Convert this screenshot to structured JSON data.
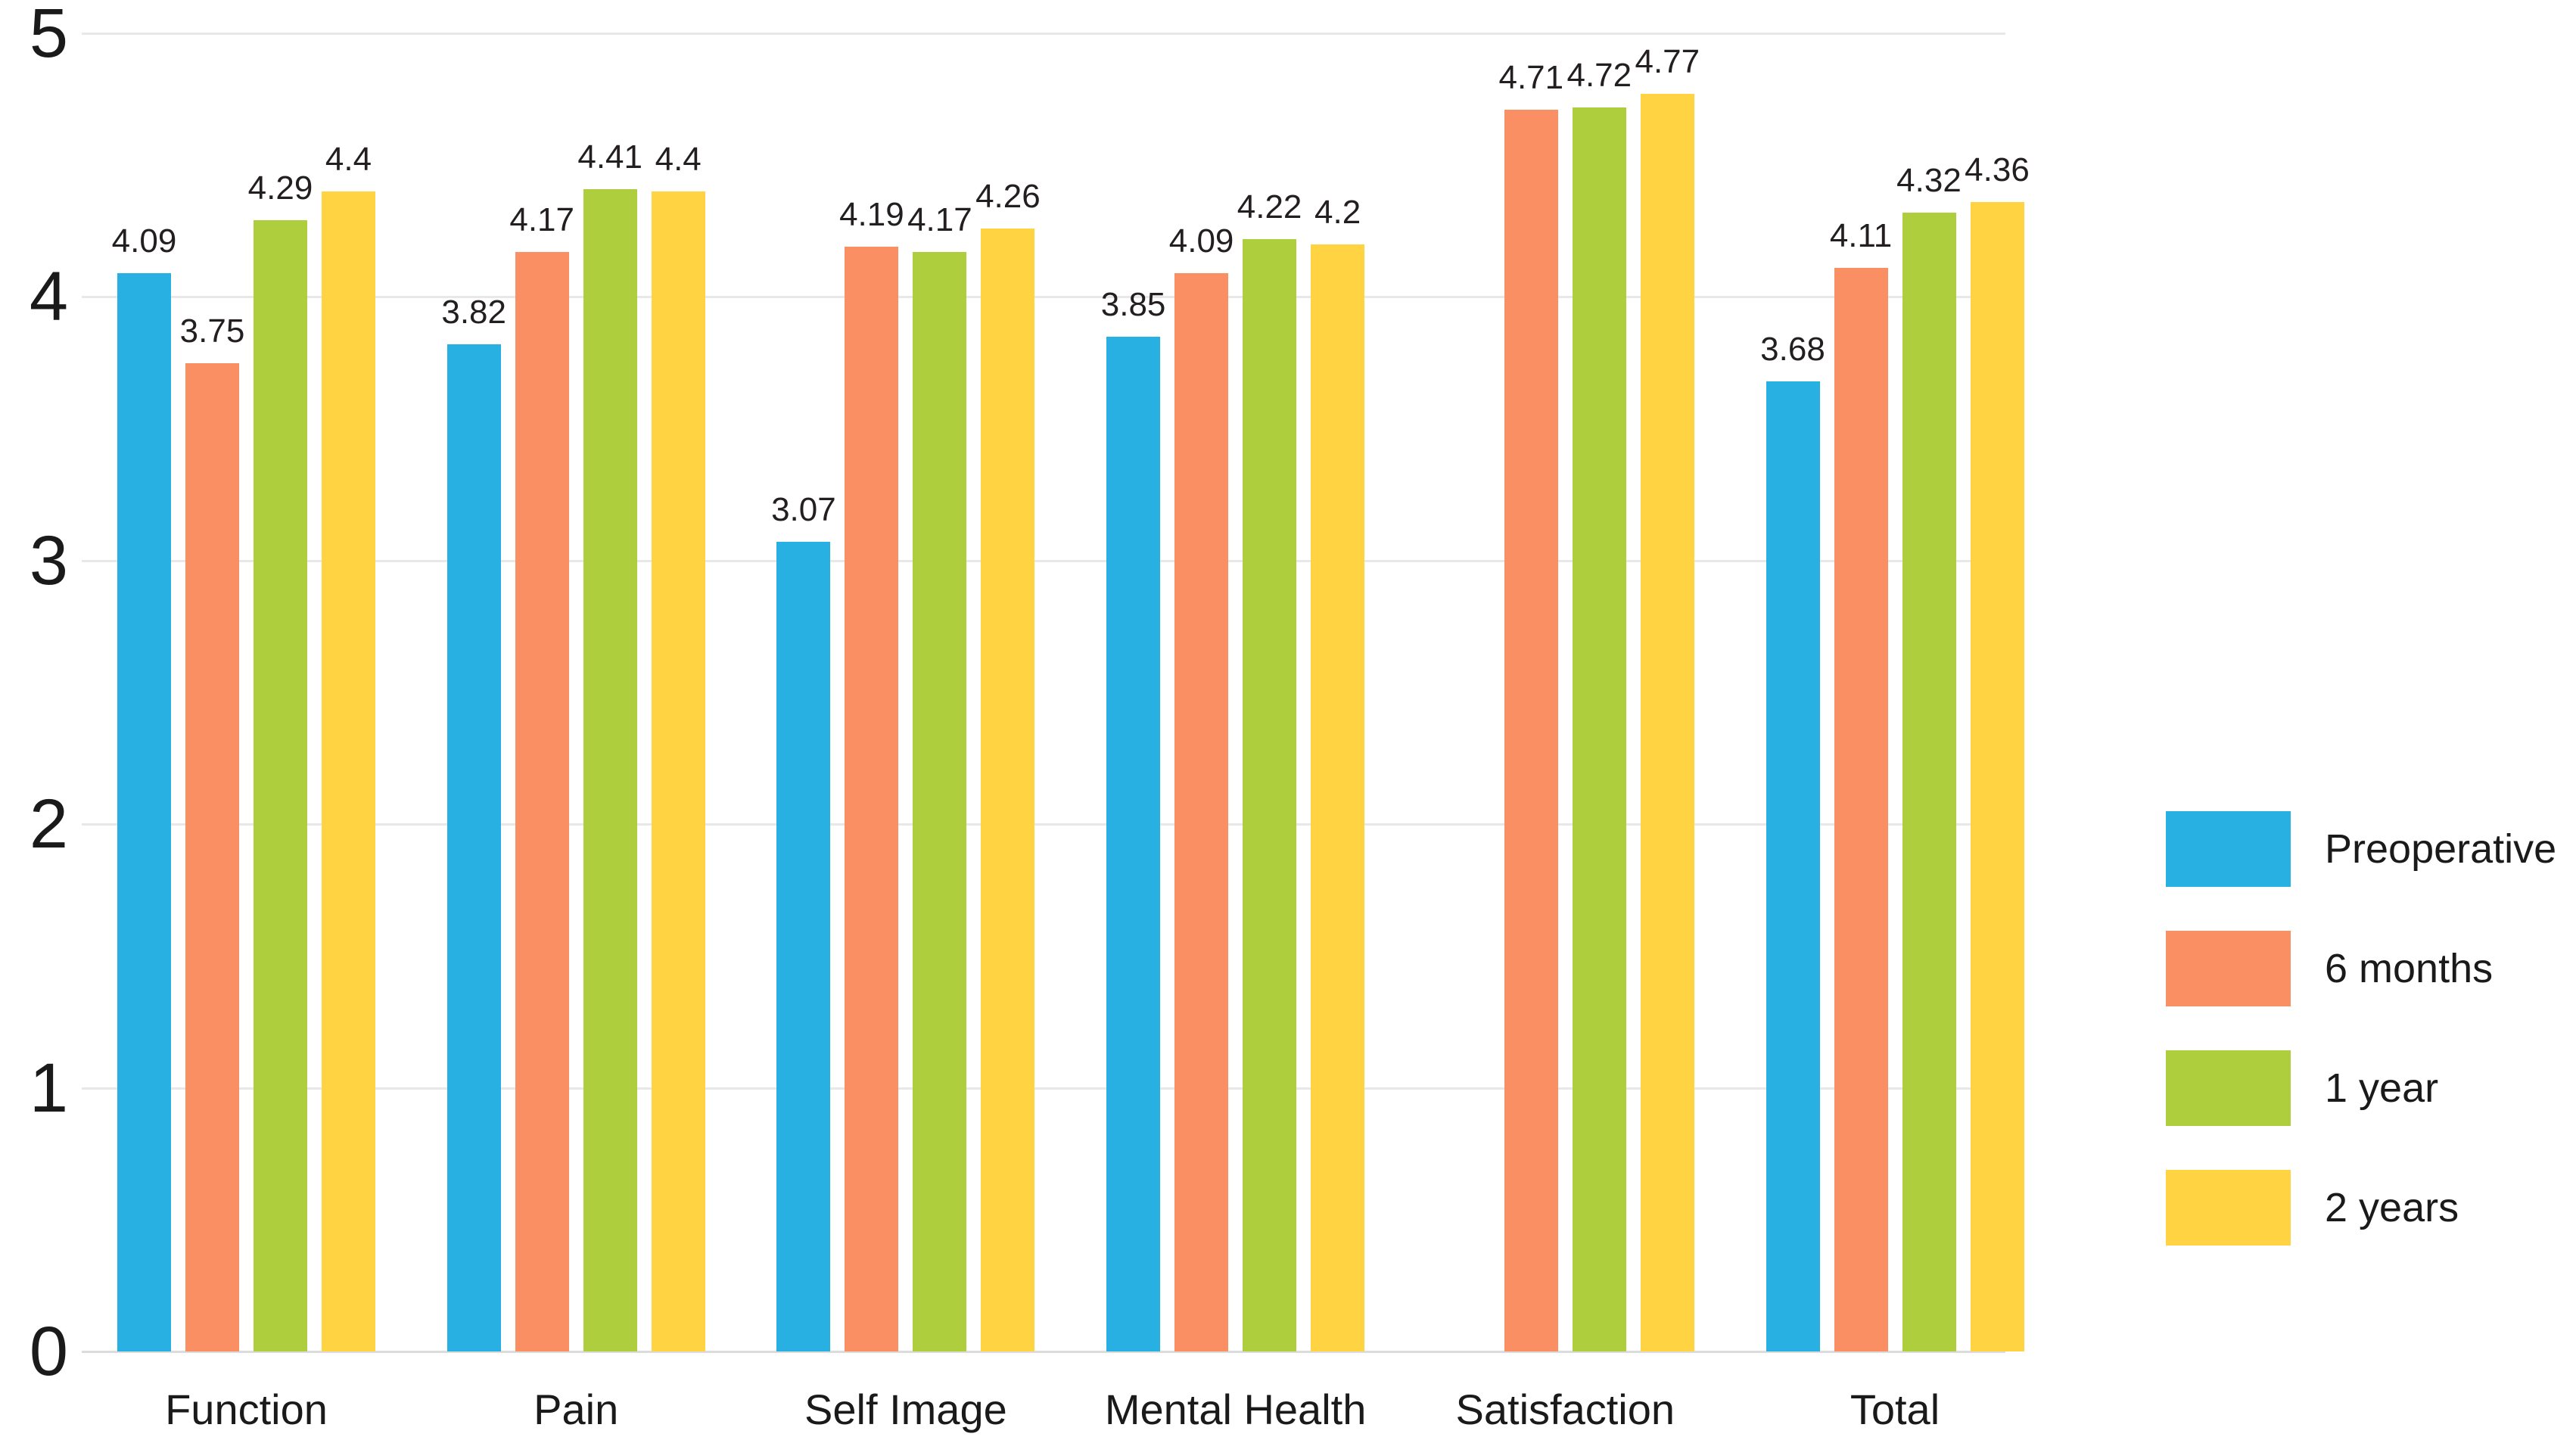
{
  "chart_data": {
    "type": "bar",
    "title": "",
    "xlabel": "",
    "ylabel": "",
    "ylim": [
      0,
      5
    ],
    "y_ticks": [
      "0",
      "1",
      "2",
      "3",
      "4",
      "5"
    ],
    "grid": "horizontal",
    "legend_position": "right",
    "categories": [
      "Function",
      "Pain",
      "Self Image",
      "Mental Health",
      "Satisfaction",
      "Total"
    ],
    "series": [
      {
        "name": "Preoperative",
        "color": "#29B0E2",
        "values": [
          4.09,
          3.82,
          3.07,
          3.85,
          null,
          3.68
        ]
      },
      {
        "name": "6 months",
        "color": "#F98F63",
        "values": [
          3.75,
          4.17,
          4.19,
          4.09,
          4.71,
          4.11
        ]
      },
      {
        "name": "1 year",
        "color": "#AFCE3D",
        "values": [
          4.29,
          4.41,
          4.17,
          4.22,
          4.72,
          4.32
        ]
      },
      {
        "name": "2 years",
        "color": "#FFD342",
        "values": [
          4.4,
          4.4,
          4.26,
          4.2,
          4.77,
          4.36
        ]
      }
    ],
    "value_labels": {
      "Function": [
        "4.09",
        "3.75",
        "4.29",
        "4.4"
      ],
      "Pain": [
        "3.82",
        "4.17",
        "4.41",
        "4.4"
      ],
      "Self Image": [
        "3.07",
        "4.19",
        "4.17",
        "4.26"
      ],
      "Mental Health": [
        "3.85",
        "4.09",
        "4.22",
        "4.2"
      ],
      "Satisfaction": [
        null,
        "4.71",
        "4.72",
        "4.77"
      ],
      "Total": [
        "3.68",
        "4.11",
        "4.32",
        "4.36"
      ]
    },
    "colors": {
      "gridline": "#e8e8e8",
      "baseline": "#dcdcdc",
      "text": "#231f20",
      "background": "#ffffff"
    }
  }
}
